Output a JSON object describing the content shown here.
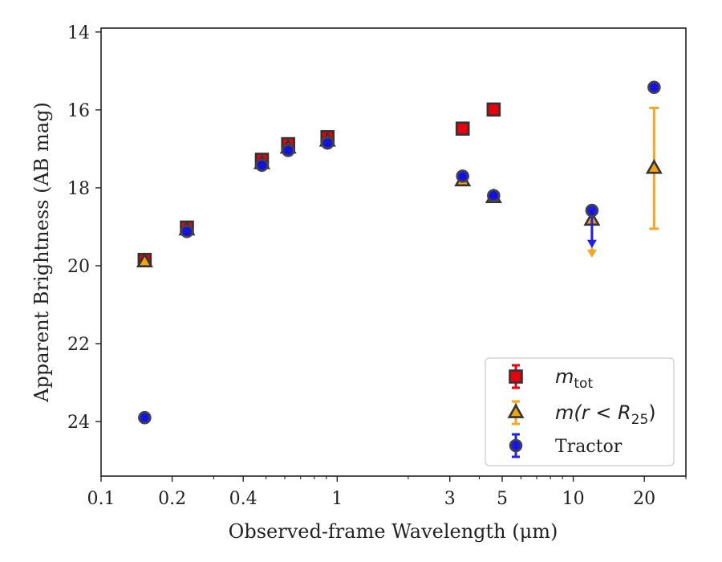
{
  "chart_data": {
    "type": "scatter",
    "xlabel": "Observed-frame Wavelength (μm)",
    "ylabel": "Apparent Brightness (AB mag)",
    "xscale": "log",
    "xlim": [
      0.1,
      30
    ],
    "ylim": [
      25.4,
      13.9
    ],
    "y_inverted": true,
    "xticks": [
      {
        "value": 0.1,
        "label": "0.1"
      },
      {
        "value": 0.2,
        "label": "0.2"
      },
      {
        "value": 0.4,
        "label": "0.4"
      },
      {
        "value": 1,
        "label": "1"
      },
      {
        "value": 3,
        "label": "3"
      },
      {
        "value": 5,
        "label": "5"
      },
      {
        "value": 10,
        "label": "10"
      },
      {
        "value": 20,
        "label": "20"
      }
    ],
    "yticks": [
      {
        "value": 14,
        "label": "14"
      },
      {
        "value": 16,
        "label": "16"
      },
      {
        "value": 18,
        "label": "18"
      },
      {
        "value": 20,
        "label": "20"
      },
      {
        "value": 22,
        "label": "22"
      },
      {
        "value": 24,
        "label": "24"
      }
    ],
    "grid": false,
    "legend_position": "lower-right",
    "series": [
      {
        "name": "m_tot",
        "legend_label": {
          "base": "m",
          "sub": "tot",
          "suffix": ""
        },
        "marker": "square",
        "fill": "#e8000b",
        "error_color": "#e8000b",
        "points": [
          {
            "x": 0.153,
            "y": 19.85,
            "err": 0.05
          },
          {
            "x": 0.231,
            "y": 19.02,
            "err": 0.05
          },
          {
            "x": 0.48,
            "y": 17.28,
            "err": 0.05
          },
          {
            "x": 0.62,
            "y": 16.88,
            "err": 0.05
          },
          {
            "x": 0.91,
            "y": 16.7,
            "err": 0.05
          },
          {
            "x": 3.4,
            "y": 16.48,
            "err": 0.03
          },
          {
            "x": 4.6,
            "y": 15.99,
            "err": 0.03
          }
        ]
      },
      {
        "name": "m(r < R25)",
        "legend_label": {
          "base": "m(r < R",
          "sub": "25",
          "suffix": ")"
        },
        "marker": "triangle",
        "fill": "#f0a30a",
        "error_color": "#f5a623",
        "points": [
          {
            "x": 0.153,
            "y": 19.9,
            "err": 0.05
          },
          {
            "x": 0.231,
            "y": 19.08,
            "err": 0.05
          },
          {
            "x": 0.48,
            "y": 17.38,
            "err": 0.05
          },
          {
            "x": 0.62,
            "y": 16.98,
            "err": 0.05
          },
          {
            "x": 0.91,
            "y": 16.8,
            "err": 0.05
          },
          {
            "x": 3.4,
            "y": 17.82,
            "err": 0.03
          },
          {
            "x": 4.6,
            "y": 18.25,
            "err": 0.03
          },
          {
            "x": 12.0,
            "y": 18.83,
            "err": 0,
            "upper_limit_to": 19.75
          },
          {
            "x": 22.0,
            "y": 17.5,
            "err_low": 1.55,
            "err_high": 1.55
          }
        ]
      },
      {
        "name": "Tractor",
        "legend_label": {
          "base": "Tractor",
          "sub": "",
          "suffix": ""
        },
        "marker": "circle",
        "fill": "#1010e0",
        "error_color": "#2020f0",
        "points": [
          {
            "x": 0.153,
            "y": 23.9,
            "err": 0.05
          },
          {
            "x": 0.231,
            "y": 19.12,
            "err": 0.05
          },
          {
            "x": 0.48,
            "y": 17.42,
            "err": 0.05
          },
          {
            "x": 0.62,
            "y": 17.04,
            "err": 0.05
          },
          {
            "x": 0.91,
            "y": 16.85,
            "err": 0.05
          },
          {
            "x": 3.4,
            "y": 17.7,
            "err": 0.03
          },
          {
            "x": 4.6,
            "y": 18.2,
            "err": 0.03
          },
          {
            "x": 12.0,
            "y": 18.58,
            "err": 0,
            "upper_limit_to": 19.5
          },
          {
            "x": 22.0,
            "y": 15.42,
            "err": 0.05
          }
        ]
      }
    ]
  }
}
